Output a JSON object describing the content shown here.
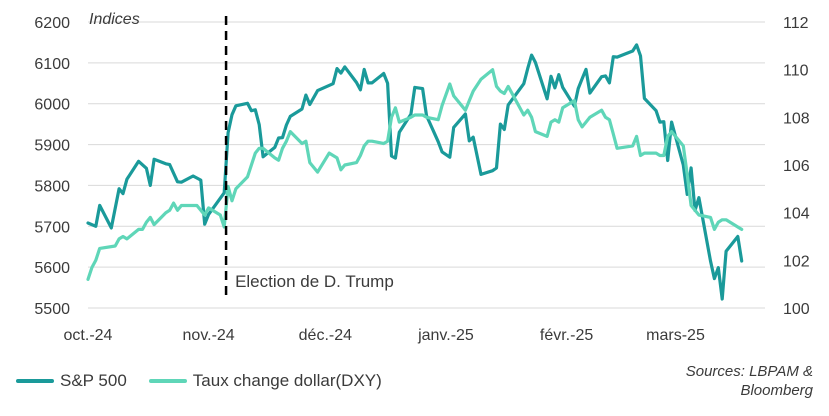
{
  "chart_data": {
    "type": "line",
    "units_label": "Indices",
    "x_tick_labels": [
      "oct.-24",
      "nov.-24",
      "déc.-24",
      "janv.-25",
      "févr.-25",
      "mars-25"
    ],
    "x_range": [
      "2024-10-01",
      "2025-03-24"
    ],
    "y_left": {
      "min": 5500,
      "max": 6200,
      "ticks": [
        5500,
        5600,
        5700,
        5800,
        5900,
        6000,
        6100,
        6200
      ]
    },
    "y_right": {
      "min": 100,
      "max": 112,
      "ticks": [
        100,
        102,
        104,
        106,
        108,
        110,
        112
      ]
    },
    "grid": "horizontal",
    "legend_position": "bottom-left",
    "annotation": {
      "date": "2024-11-06",
      "text": "Election de D. Trump"
    },
    "series": [
      {
        "name": "S&P 500",
        "axis": "left",
        "color": "#1a9a9a",
        "points": [
          [
            "2024-10-01",
            5708
          ],
          [
            "2024-10-03",
            5700
          ],
          [
            "2024-10-04",
            5751
          ],
          [
            "2024-10-07",
            5696
          ],
          [
            "2024-10-09",
            5792
          ],
          [
            "2024-10-10",
            5780
          ],
          [
            "2024-10-11",
            5815
          ],
          [
            "2024-10-14",
            5859
          ],
          [
            "2024-10-16",
            5842
          ],
          [
            "2024-10-17",
            5800
          ],
          [
            "2024-10-18",
            5864
          ],
          [
            "2024-10-21",
            5853
          ],
          [
            "2024-10-22",
            5851
          ],
          [
            "2024-10-24",
            5809
          ],
          [
            "2024-10-25",
            5808
          ],
          [
            "2024-10-28",
            5823
          ],
          [
            "2024-10-30",
            5813
          ],
          [
            "2024-10-31",
            5705
          ],
          [
            "2024-11-01",
            5729
          ],
          [
            "2024-11-05",
            5782
          ],
          [
            "2024-11-06",
            5929
          ],
          [
            "2024-11-07",
            5973
          ],
          [
            "2024-11-08",
            5995
          ],
          [
            "2024-11-11",
            6001
          ],
          [
            "2024-11-12",
            5983
          ],
          [
            "2024-11-13",
            5985
          ],
          [
            "2024-11-14",
            5949
          ],
          [
            "2024-11-15",
            5870
          ],
          [
            "2024-11-18",
            5893
          ],
          [
            "2024-11-19",
            5916
          ],
          [
            "2024-11-20",
            5917
          ],
          [
            "2024-11-21",
            5948
          ],
          [
            "2024-11-22",
            5969
          ],
          [
            "2024-11-25",
            5987
          ],
          [
            "2024-11-26",
            6021
          ],
          [
            "2024-11-27",
            5998
          ],
          [
            "2024-11-29",
            6032
          ],
          [
            "2024-12-03",
            6049
          ],
          [
            "2024-12-04",
            6086
          ],
          [
            "2024-12-05",
            6075
          ],
          [
            "2024-12-06",
            6090
          ],
          [
            "2024-12-09",
            6052
          ],
          [
            "2024-12-10",
            6034
          ],
          [
            "2024-12-11",
            6084
          ],
          [
            "2024-12-12",
            6051
          ],
          [
            "2024-12-13",
            6051
          ],
          [
            "2024-12-16",
            6074
          ],
          [
            "2024-12-17",
            6050
          ],
          [
            "2024-12-18",
            5872
          ],
          [
            "2024-12-19",
            5867
          ],
          [
            "2024-12-20",
            5930
          ],
          [
            "2024-12-23",
            5974
          ],
          [
            "2024-12-24",
            6040
          ],
          [
            "2024-12-26",
            6037
          ],
          [
            "2024-12-27",
            5971
          ],
          [
            "2024-12-30",
            5907
          ],
          [
            "2024-12-31",
            5882
          ],
          [
            "2025-01-02",
            5869
          ],
          [
            "2025-01-03",
            5942
          ],
          [
            "2025-01-06",
            5975
          ],
          [
            "2025-01-07",
            5909
          ],
          [
            "2025-01-08",
            5918
          ],
          [
            "2025-01-10",
            5827
          ],
          [
            "2025-01-13",
            5836
          ],
          [
            "2025-01-14",
            5843
          ],
          [
            "2025-01-15",
            5950
          ],
          [
            "2025-01-16",
            5937
          ],
          [
            "2025-01-17",
            5997
          ],
          [
            "2025-01-21",
            6049
          ],
          [
            "2025-01-22",
            6086
          ],
          [
            "2025-01-23",
            6119
          ],
          [
            "2025-01-24",
            6101
          ],
          [
            "2025-01-27",
            6012
          ],
          [
            "2025-01-28",
            6067
          ],
          [
            "2025-01-29",
            6039
          ],
          [
            "2025-01-30",
            6071
          ],
          [
            "2025-01-31",
            6040
          ],
          [
            "2025-02-03",
            5994
          ],
          [
            "2025-02-04",
            6037
          ],
          [
            "2025-02-05",
            6061
          ],
          [
            "2025-02-06",
            6084
          ],
          [
            "2025-02-07",
            6026
          ],
          [
            "2025-02-10",
            6066
          ],
          [
            "2025-02-11",
            6068
          ],
          [
            "2025-02-12",
            6051
          ],
          [
            "2025-02-13",
            6115
          ],
          [
            "2025-02-14",
            6114
          ],
          [
            "2025-02-18",
            6129
          ],
          [
            "2025-02-19",
            6144
          ],
          [
            "2025-02-20",
            6117
          ],
          [
            "2025-02-21",
            6013
          ],
          [
            "2025-02-24",
            5983
          ],
          [
            "2025-02-25",
            5955
          ],
          [
            "2025-02-26",
            5956
          ],
          [
            "2025-02-27",
            5861
          ],
          [
            "2025-02-28",
            5955
          ],
          [
            "2025-03-03",
            5850
          ],
          [
            "2025-03-04",
            5778
          ],
          [
            "2025-03-05",
            5843
          ],
          [
            "2025-03-06",
            5739
          ],
          [
            "2025-03-07",
            5770
          ],
          [
            "2025-03-10",
            5615
          ],
          [
            "2025-03-11",
            5572
          ],
          [
            "2025-03-12",
            5599
          ],
          [
            "2025-03-13",
            5522
          ],
          [
            "2025-03-14",
            5639
          ],
          [
            "2025-03-17",
            5675
          ],
          [
            "2025-03-18",
            5615
          ]
        ]
      },
      {
        "name": "Taux change dollar(DXY)",
        "axis": "right",
        "color": "#5fd6b8",
        "points": [
          [
            "2024-10-01",
            101.2
          ],
          [
            "2024-10-02",
            101.7
          ],
          [
            "2024-10-03",
            102.0
          ],
          [
            "2024-10-04",
            102.5
          ],
          [
            "2024-10-08",
            102.6
          ],
          [
            "2024-10-09",
            102.9
          ],
          [
            "2024-10-10",
            103.0
          ],
          [
            "2024-10-11",
            102.9
          ],
          [
            "2024-10-14",
            103.3
          ],
          [
            "2024-10-15",
            103.3
          ],
          [
            "2024-10-16",
            103.6
          ],
          [
            "2024-10-17",
            103.8
          ],
          [
            "2024-10-18",
            103.5
          ],
          [
            "2024-10-21",
            104.0
          ],
          [
            "2024-10-22",
            104.1
          ],
          [
            "2024-10-23",
            104.4
          ],
          [
            "2024-10-24",
            104.1
          ],
          [
            "2024-10-25",
            104.3
          ],
          [
            "2024-10-28",
            104.3
          ],
          [
            "2024-10-29",
            104.3
          ],
          [
            "2024-10-30",
            104.1
          ],
          [
            "2024-10-31",
            103.9
          ],
          [
            "2024-11-01",
            104.2
          ],
          [
            "2024-11-04",
            103.9
          ],
          [
            "2024-11-05",
            103.4
          ],
          [
            "2024-11-06",
            105.1
          ],
          [
            "2024-11-07",
            104.5
          ],
          [
            "2024-11-08",
            105.0
          ],
          [
            "2024-11-11",
            105.5
          ],
          [
            "2024-11-12",
            106.0
          ],
          [
            "2024-11-13",
            106.5
          ],
          [
            "2024-11-14",
            106.7
          ],
          [
            "2024-11-15",
            106.7
          ],
          [
            "2024-11-18",
            106.3
          ],
          [
            "2024-11-19",
            106.2
          ],
          [
            "2024-11-20",
            106.7
          ],
          [
            "2024-11-21",
            107.0
          ],
          [
            "2024-11-22",
            107.4
          ],
          [
            "2024-11-25",
            106.9
          ],
          [
            "2024-11-26",
            107.0
          ],
          [
            "2024-11-27",
            106.1
          ],
          [
            "2024-11-29",
            105.7
          ],
          [
            "2024-12-02",
            106.5
          ],
          [
            "2024-12-04",
            106.3
          ],
          [
            "2024-12-05",
            105.8
          ],
          [
            "2024-12-06",
            106.0
          ],
          [
            "2024-12-09",
            106.1
          ],
          [
            "2024-12-10",
            106.4
          ],
          [
            "2024-12-11",
            106.8
          ],
          [
            "2024-12-12",
            107.0
          ],
          [
            "2024-12-13",
            107.0
          ],
          [
            "2024-12-16",
            106.9
          ],
          [
            "2024-12-17",
            107.0
          ],
          [
            "2024-12-18",
            108.0
          ],
          [
            "2024-12-19",
            108.4
          ],
          [
            "2024-12-20",
            107.8
          ],
          [
            "2024-12-23",
            108.0
          ],
          [
            "2024-12-24",
            108.1
          ],
          [
            "2024-12-26",
            108.1
          ],
          [
            "2024-12-27",
            108.0
          ],
          [
            "2024-12-30",
            107.9
          ],
          [
            "2024-12-31",
            108.5
          ],
          [
            "2025-01-02",
            109.4
          ],
          [
            "2025-01-03",
            108.9
          ],
          [
            "2025-01-06",
            108.3
          ],
          [
            "2025-01-07",
            108.7
          ],
          [
            "2025-01-08",
            109.1
          ],
          [
            "2025-01-10",
            109.6
          ],
          [
            "2025-01-13",
            110.0
          ],
          [
            "2025-01-14",
            109.3
          ],
          [
            "2025-01-15",
            109.1
          ],
          [
            "2025-01-16",
            109.0
          ],
          [
            "2025-01-17",
            109.3
          ],
          [
            "2025-01-21",
            108.1
          ],
          [
            "2025-01-22",
            108.3
          ],
          [
            "2025-01-23",
            108.0
          ],
          [
            "2025-01-24",
            107.4
          ],
          [
            "2025-01-27",
            107.2
          ],
          [
            "2025-01-28",
            107.8
          ],
          [
            "2025-01-29",
            107.9
          ],
          [
            "2025-01-30",
            107.8
          ],
          [
            "2025-01-31",
            108.4
          ],
          [
            "2025-02-03",
            108.7
          ],
          [
            "2025-02-04",
            107.9
          ],
          [
            "2025-02-05",
            107.6
          ],
          [
            "2025-02-06",
            107.8
          ],
          [
            "2025-02-07",
            108.0
          ],
          [
            "2025-02-10",
            108.3
          ],
          [
            "2025-02-11",
            108.0
          ],
          [
            "2025-02-12",
            107.9
          ],
          [
            "2025-02-13",
            107.3
          ],
          [
            "2025-02-14",
            106.7
          ],
          [
            "2025-02-18",
            106.8
          ],
          [
            "2025-02-19",
            107.2
          ],
          [
            "2025-02-20",
            106.4
          ],
          [
            "2025-02-21",
            106.5
          ],
          [
            "2025-02-24",
            106.5
          ],
          [
            "2025-02-25",
            106.4
          ],
          [
            "2025-02-26",
            106.4
          ],
          [
            "2025-02-27",
            107.2
          ],
          [
            "2025-02-28",
            107.4
          ],
          [
            "2025-03-03",
            106.8
          ],
          [
            "2025-03-04",
            105.6
          ],
          [
            "2025-03-05",
            104.3
          ],
          [
            "2025-03-06",
            104.1
          ],
          [
            "2025-03-07",
            103.9
          ],
          [
            "2025-03-10",
            103.8
          ],
          [
            "2025-03-11",
            103.3
          ],
          [
            "2025-03-12",
            103.6
          ],
          [
            "2025-03-13",
            103.7
          ],
          [
            "2025-03-14",
            103.7
          ],
          [
            "2025-03-17",
            103.4
          ],
          [
            "2025-03-18",
            103.3
          ]
        ]
      }
    ],
    "source_lines": [
      "Sources: LBPAM &",
      "Bloomberg"
    ]
  }
}
